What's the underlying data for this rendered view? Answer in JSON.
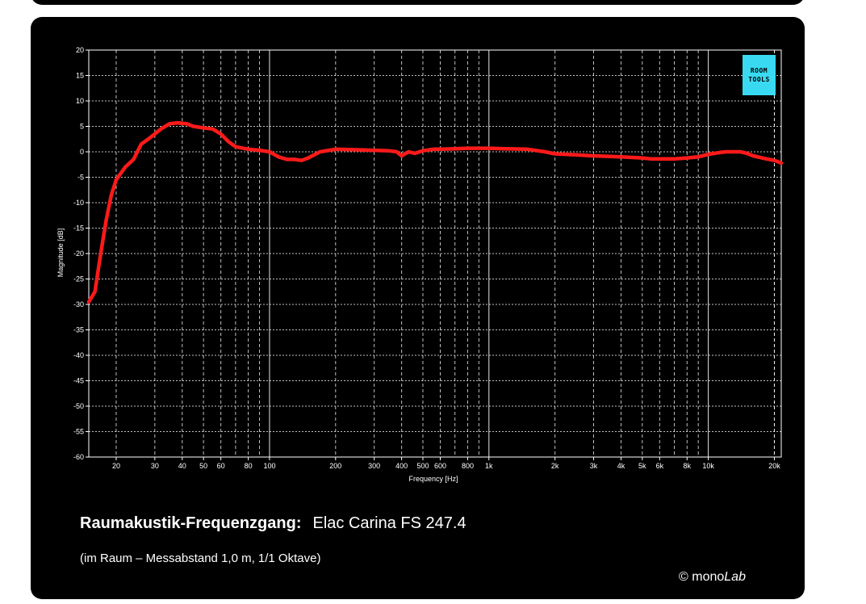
{
  "caption": {
    "title_bold": "Raumakustik-Frequenzgang:",
    "title_model": "Elac Carina FS 247.4",
    "subtitle": "(im Raum – Messabstand 1,0 m, 1/1 Oktave)",
    "copyright_prefix": "© mono",
    "copyright_brand": "Lab"
  },
  "logo": {
    "line1": "ROOM",
    "line2": "TOOLS"
  },
  "chart_data": {
    "type": "line",
    "title": "",
    "xlabel": "Frequency [Hz]",
    "ylabel": "Magnitude [dB]",
    "xscale": "log",
    "xlim": [
      15,
      21500
    ],
    "ylim": [
      -60,
      20
    ],
    "grid": true,
    "y_ticks": [
      20,
      15,
      10,
      5,
      0,
      -5,
      -10,
      -15,
      -20,
      -25,
      -30,
      -35,
      -40,
      -45,
      -50,
      -55,
      -60
    ],
    "x_ticks": [
      {
        "value": 20,
        "label": "20"
      },
      {
        "value": 30,
        "label": "30"
      },
      {
        "value": 40,
        "label": "40"
      },
      {
        "value": 50,
        "label": "50"
      },
      {
        "value": 60,
        "label": "60"
      },
      {
        "value": 80,
        "label": "80"
      },
      {
        "value": 100,
        "label": "100"
      },
      {
        "value": 200,
        "label": "200"
      },
      {
        "value": 300,
        "label": "300"
      },
      {
        "value": 400,
        "label": "400"
      },
      {
        "value": 500,
        "label": "500"
      },
      {
        "value": 600,
        "label": "600"
      },
      {
        "value": 800,
        "label": "800"
      },
      {
        "value": 1000,
        "label": "1k"
      },
      {
        "value": 2000,
        "label": "2k"
      },
      {
        "value": 3000,
        "label": "3k"
      },
      {
        "value": 4000,
        "label": "4k"
      },
      {
        "value": 5000,
        "label": "5k"
      },
      {
        "value": 6000,
        "label": "6k"
      },
      {
        "value": 8000,
        "label": "8k"
      },
      {
        "value": 10000,
        "label": "10k"
      },
      {
        "value": 20000,
        "label": "20k"
      }
    ],
    "series": [
      {
        "color": "#ff1a1a",
        "x": [
          15,
          16,
          17,
          18,
          19,
          20,
          22,
          24,
          26,
          28,
          30,
          32,
          35,
          38,
          42,
          45,
          50,
          55,
          60,
          65,
          70,
          80,
          90,
          100,
          110,
          120,
          130,
          140,
          150,
          170,
          200,
          250,
          300,
          350,
          380,
          400,
          430,
          460,
          500,
          560,
          600,
          700,
          800,
          1000,
          1200,
          1500,
          1800,
          2000,
          2500,
          3000,
          4000,
          5000,
          5500,
          6000,
          7000,
          8000,
          9000,
          10000,
          11000,
          12000,
          14000,
          15000,
          16000,
          18000,
          20000,
          21500
        ],
        "y": [
          -29.5,
          -27.5,
          -20,
          -13.5,
          -8.5,
          -5.5,
          -3,
          -1.5,
          1.5,
          2.5,
          3.5,
          4.5,
          5.5,
          5.7,
          5.5,
          5,
          4.7,
          4.5,
          3.5,
          2,
          1,
          0.5,
          0.3,
          0,
          -1,
          -1.5,
          -1.5,
          -1.7,
          -1.2,
          0,
          0.5,
          0.4,
          0.3,
          0.2,
          0,
          -0.8,
          0,
          -0.3,
          0.2,
          0.5,
          0.5,
          0.6,
          0.7,
          0.7,
          0.6,
          0.5,
          0,
          -0.4,
          -0.6,
          -0.8,
          -1,
          -1.2,
          -1.4,
          -1.4,
          -1.4,
          -1.2,
          -1,
          -0.5,
          -0.2,
          0,
          0,
          -0.3,
          -0.8,
          -1.3,
          -1.7,
          -2.2
        ]
      }
    ]
  }
}
